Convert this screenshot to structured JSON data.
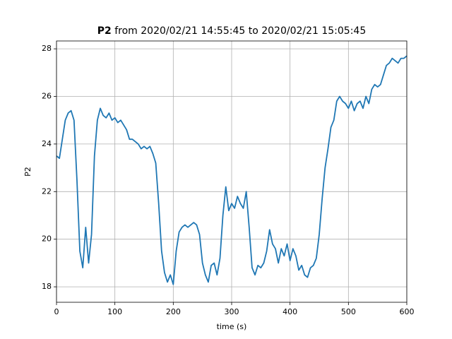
{
  "chart_data": {
    "type": "line",
    "title": {
      "bold": "P2",
      "rest": "from 2020/02/21 14:55:45 to 2020/02/21 15:05:45"
    },
    "xlabel": "time (s)",
    "ylabel": "P2",
    "x": [
      0,
      5,
      10,
      15,
      20,
      25,
      30,
      35,
      40,
      45,
      50,
      55,
      60,
      65,
      70,
      75,
      80,
      85,
      90,
      95,
      100,
      105,
      110,
      115,
      120,
      125,
      130,
      135,
      140,
      145,
      150,
      155,
      160,
      165,
      170,
      175,
      180,
      185,
      190,
      195,
      200,
      205,
      210,
      215,
      220,
      225,
      230,
      235,
      240,
      245,
      250,
      255,
      260,
      265,
      270,
      275,
      280,
      285,
      290,
      295,
      300,
      305,
      310,
      315,
      320,
      325,
      330,
      335,
      340,
      345,
      350,
      355,
      360,
      365,
      370,
      375,
      380,
      385,
      390,
      395,
      400,
      405,
      410,
      415,
      420,
      425,
      430,
      435,
      440,
      445,
      450,
      455,
      460,
      465,
      470,
      475,
      480,
      485,
      490,
      495,
      500,
      505,
      510,
      515,
      520,
      525,
      530,
      535,
      540,
      545,
      550,
      555,
      560,
      565,
      570,
      575,
      580,
      585,
      590,
      595,
      600
    ],
    "series": [
      {
        "name": "P2",
        "color": "#1f77b4",
        "values": [
          23.5,
          23.4,
          24.2,
          25.0,
          25.3,
          25.4,
          25.0,
          22.5,
          19.5,
          18.8,
          20.5,
          19.0,
          20.2,
          23.5,
          25.0,
          25.5,
          25.2,
          25.1,
          25.3,
          25.0,
          25.1,
          24.9,
          25.0,
          24.8,
          24.6,
          24.2,
          24.2,
          24.1,
          24.0,
          23.8,
          23.9,
          23.8,
          23.9,
          23.6,
          23.2,
          21.5,
          19.5,
          18.6,
          18.2,
          18.5,
          18.1,
          19.5,
          20.3,
          20.5,
          20.6,
          20.5,
          20.6,
          20.7,
          20.6,
          20.2,
          19.0,
          18.5,
          18.2,
          18.9,
          19.0,
          18.5,
          19.2,
          21.0,
          22.2,
          21.2,
          21.5,
          21.3,
          21.8,
          21.5,
          21.3,
          22.0,
          20.5,
          18.8,
          18.5,
          18.9,
          18.8,
          19.0,
          19.5,
          20.4,
          19.8,
          19.6,
          19.0,
          19.6,
          19.3,
          19.8,
          19.1,
          19.6,
          19.3,
          18.7,
          18.9,
          18.5,
          18.4,
          18.8,
          18.9,
          19.2,
          20.2,
          21.7,
          23.0,
          23.8,
          24.7,
          25.0,
          25.8,
          26.0,
          25.8,
          25.7,
          25.5,
          25.8,
          25.4,
          25.7,
          25.8,
          25.5,
          26.0,
          25.7,
          26.3,
          26.5,
          26.4,
          26.5,
          26.9,
          27.3,
          27.4,
          27.6,
          27.5,
          27.4,
          27.6,
          27.6,
          27.7
        ]
      }
    ],
    "xlim": [
      0,
      600
    ],
    "xticks": [
      0,
      100,
      200,
      300,
      400,
      500,
      600
    ],
    "ylim": [
      17.35,
      28.33
    ],
    "yticks": [
      18,
      20,
      22,
      24,
      26,
      28
    ],
    "grid": true
  }
}
